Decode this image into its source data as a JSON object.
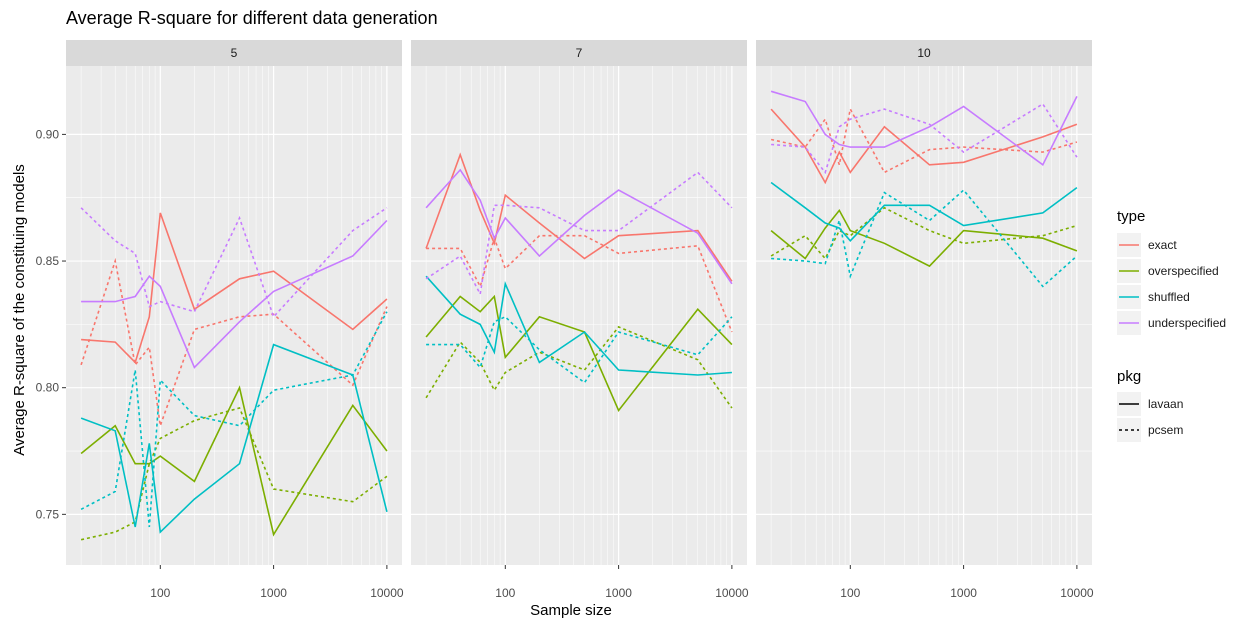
{
  "chart_data": {
    "type": "line",
    "title": "Average R-square for different data generation",
    "xlabel": "Sample size",
    "ylabel": "Average R-square of the constituing models",
    "x_scale": "log10",
    "xlim": [
      20,
      10000
    ],
    "ylim": [
      0.73,
      0.927
    ],
    "x_ticks": [
      100,
      1000,
      10000
    ],
    "x_tick_labels": [
      "100",
      "1000",
      "10000"
    ],
    "y_ticks": [
      0.75,
      0.8,
      0.85,
      0.9
    ],
    "y_tick_labels": [
      "0.75",
      "0.80",
      "0.85",
      "0.90"
    ],
    "grid": true,
    "legend_position": "right",
    "legend": {
      "type_title": "type",
      "pkg_title": "pkg",
      "types": [
        {
          "name": "exact",
          "color": "#F8766D"
        },
        {
          "name": "overspecified",
          "color": "#7CAE00"
        },
        {
          "name": "shuffled",
          "color": "#00BFC4"
        },
        {
          "name": "underspecified",
          "color": "#C77CFF"
        }
      ],
      "pkgs": [
        {
          "name": "lavaan",
          "dash": "solid"
        },
        {
          "name": "pcsem",
          "dash": "dotted"
        }
      ]
    },
    "x": [
      20,
      40,
      60,
      80,
      100,
      200,
      500,
      1000,
      5000,
      10000
    ],
    "panels": [
      {
        "label": "5",
        "series": [
          {
            "type": "exact",
            "pkg": "lavaan",
            "values": [
              0.819,
              0.818,
              0.81,
              0.828,
              0.869,
              0.831,
              0.843,
              0.846,
              0.823,
              0.835
            ]
          },
          {
            "type": "exact",
            "pkg": "pcsem",
            "values": [
              0.809,
              0.85,
              0.809,
              0.816,
              0.785,
              0.823,
              0.828,
              0.829,
              0.801,
              0.832
            ]
          },
          {
            "type": "overspecified",
            "pkg": "lavaan",
            "values": [
              0.774,
              0.785,
              0.77,
              0.77,
              0.773,
              0.763,
              0.8,
              0.742,
              0.793,
              0.775
            ]
          },
          {
            "type": "overspecified",
            "pkg": "pcsem",
            "values": [
              0.74,
              0.743,
              0.747,
              0.77,
              0.78,
              0.787,
              0.792,
              0.76,
              0.755,
              0.765
            ]
          },
          {
            "type": "shuffled",
            "pkg": "lavaan",
            "values": [
              0.788,
              0.783,
              0.745,
              0.778,
              0.743,
              0.756,
              0.77,
              0.817,
              0.805,
              0.751
            ]
          },
          {
            "type": "shuffled",
            "pkg": "pcsem",
            "values": [
              0.752,
              0.759,
              0.807,
              0.745,
              0.803,
              0.789,
              0.785,
              0.799,
              0.805,
              0.83
            ]
          },
          {
            "type": "underspecified",
            "pkg": "lavaan",
            "values": [
              0.834,
              0.834,
              0.836,
              0.844,
              0.84,
              0.808,
              0.826,
              0.838,
              0.852,
              0.866
            ]
          },
          {
            "type": "underspecified",
            "pkg": "pcsem",
            "values": [
              0.871,
              0.858,
              0.853,
              0.832,
              0.834,
              0.83,
              0.867,
              0.828,
              0.862,
              0.871
            ]
          }
        ]
      },
      {
        "label": "7",
        "series": [
          {
            "type": "exact",
            "pkg": "lavaan",
            "values": [
              0.855,
              0.892,
              0.87,
              0.857,
              0.876,
              0.865,
              0.851,
              0.86,
              0.862,
              0.842
            ]
          },
          {
            "type": "exact",
            "pkg": "pcsem",
            "values": [
              0.855,
              0.855,
              0.84,
              0.859,
              0.847,
              0.86,
              0.86,
              0.853,
              0.856,
              0.822
            ]
          },
          {
            "type": "overspecified",
            "pkg": "lavaan",
            "values": [
              0.82,
              0.836,
              0.83,
              0.836,
              0.812,
              0.828,
              0.822,
              0.791,
              0.831,
              0.817
            ]
          },
          {
            "type": "overspecified",
            "pkg": "pcsem",
            "values": [
              0.796,
              0.818,
              0.81,
              0.799,
              0.806,
              0.814,
              0.807,
              0.824,
              0.811,
              0.792
            ]
          },
          {
            "type": "shuffled",
            "pkg": "lavaan",
            "values": [
              0.844,
              0.829,
              0.825,
              0.814,
              0.841,
              0.81,
              0.822,
              0.807,
              0.805,
              0.806
            ]
          },
          {
            "type": "shuffled",
            "pkg": "pcsem",
            "values": [
              0.817,
              0.817,
              0.808,
              0.826,
              0.828,
              0.815,
              0.802,
              0.822,
              0.813,
              0.828
            ]
          },
          {
            "type": "underspecified",
            "pkg": "lavaan",
            "values": [
              0.871,
              0.886,
              0.874,
              0.859,
              0.867,
              0.852,
              0.868,
              0.878,
              0.861,
              0.841
            ]
          },
          {
            "type": "underspecified",
            "pkg": "pcsem",
            "values": [
              0.843,
              0.852,
              0.837,
              0.872,
              0.872,
              0.871,
              0.862,
              0.862,
              0.885,
              0.871
            ]
          }
        ]
      },
      {
        "label": "10",
        "series": [
          {
            "type": "exact",
            "pkg": "lavaan",
            "values": [
              0.91,
              0.895,
              0.881,
              0.893,
              0.885,
              0.903,
              0.888,
              0.889,
              0.899,
              0.904
            ]
          },
          {
            "type": "exact",
            "pkg": "pcsem",
            "values": [
              0.898,
              0.895,
              0.906,
              0.888,
              0.91,
              0.885,
              0.894,
              0.895,
              0.893,
              0.897
            ]
          },
          {
            "type": "overspecified",
            "pkg": "lavaan",
            "values": [
              0.862,
              0.851,
              0.863,
              0.87,
              0.862,
              0.857,
              0.848,
              0.862,
              0.859,
              0.854
            ]
          },
          {
            "type": "overspecified",
            "pkg": "pcsem",
            "values": [
              0.852,
              0.86,
              0.851,
              0.862,
              0.86,
              0.871,
              0.862,
              0.857,
              0.86,
              0.864
            ]
          },
          {
            "type": "shuffled",
            "pkg": "lavaan",
            "values": [
              0.881,
              0.871,
              0.865,
              0.863,
              0.858,
              0.872,
              0.872,
              0.864,
              0.869,
              0.879
            ]
          },
          {
            "type": "shuffled",
            "pkg": "pcsem",
            "values": [
              0.851,
              0.85,
              0.849,
              0.866,
              0.844,
              0.877,
              0.866,
              0.878,
              0.84,
              0.852
            ]
          },
          {
            "type": "underspecified",
            "pkg": "lavaan",
            "values": [
              0.917,
              0.913,
              0.9,
              0.896,
              0.895,
              0.895,
              0.903,
              0.911,
              0.888,
              0.915
            ]
          },
          {
            "type": "underspecified",
            "pkg": "pcsem",
            "values": [
              0.896,
              0.895,
              0.885,
              0.903,
              0.906,
              0.91,
              0.904,
              0.893,
              0.912,
              0.891
            ]
          }
        ]
      }
    ]
  }
}
